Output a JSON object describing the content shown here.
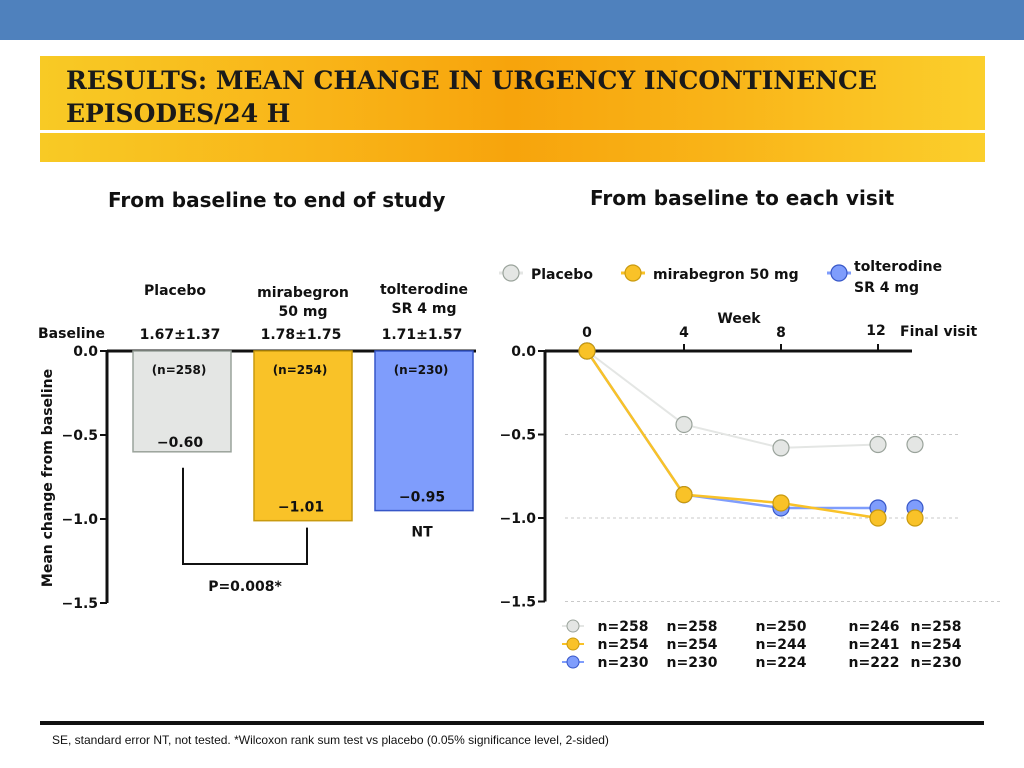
{
  "header": {
    "title": "RESULTS: MEAN CHANGE IN URGENCY INCONTINENCE EPISODES/24 H"
  },
  "colors": {
    "placebo_fill": "#e4e6e4",
    "placebo_stroke": "#9aa39b",
    "mirabegron_fill": "#f9c228",
    "mirabegron_stroke": "#c99a0e",
    "tolterodine_fill": "#7f9dfc",
    "tolterodine_stroke": "#3656c8",
    "accent": "#4f81bd",
    "title_band": "#f9b418"
  },
  "footer": {
    "note": "SE, standard error NT, not tested. *Wilcoxon rank sum test vs placebo (0.05% significance level, 2-sided)"
  },
  "chart_data": [
    {
      "type": "bar",
      "title": "From baseline to end of study",
      "ylabel": "Mean change from baseline",
      "ylim": [
        -1.5,
        0.0
      ],
      "yticks": [
        "0.0",
        "−0.5",
        "−1.0",
        "−1.5"
      ],
      "baseline_label": "Baseline",
      "categories": [
        {
          "key": "placebo",
          "name": "Placebo",
          "baseline": "1.67±1.37",
          "n": "(n=258)",
          "value": -0.6,
          "value_label": "−0.60"
        },
        {
          "key": "mirabegron",
          "name": "mirabegron 50 mg",
          "baseline": "1.78±1.75",
          "n": "(n=254)",
          "value": -1.01,
          "value_label": "−1.01"
        },
        {
          "key": "tolterodine",
          "name": "tolterodine SR 4 mg",
          "baseline": "1.71±1.57",
          "n": "(n=230)",
          "value": -0.95,
          "value_label": "−0.95",
          "annotation": "NT"
        }
      ],
      "comparison": {
        "label": "P=0.008*",
        "between": [
          "Placebo",
          "mirabegron 50 mg"
        ]
      }
    },
    {
      "type": "line",
      "title": "From baseline to each visit",
      "xlabel": "Week",
      "x_ticks": [
        "0",
        "4",
        "8",
        "12",
        "Final visit"
      ],
      "ylim": [
        -1.5,
        0.0
      ],
      "yticks": [
        "0.0",
        "−0.5",
        "−1.0",
        "−1.5"
      ],
      "series": [
        {
          "key": "placebo",
          "name": "Placebo",
          "x": [
            0,
            4,
            8,
            12
          ],
          "values": [
            0.0,
            -0.44,
            -0.58,
            -0.56
          ],
          "final": -0.56,
          "n": [
            "n=258",
            "n=258",
            "n=250",
            "n=246",
            "n=258"
          ]
        },
        {
          "key": "mirabegron",
          "name": "mirabegron 50 mg",
          "x": [
            0,
            4,
            8,
            12
          ],
          "values": [
            0.0,
            -0.86,
            -0.91,
            -1.0
          ],
          "final": -1.0,
          "n": [
            "n=254",
            "n=254",
            "n=244",
            "n=241",
            "n=254"
          ]
        },
        {
          "key": "tolterodine",
          "name": "tolterodine SR 4 mg",
          "x": [
            0,
            4,
            8,
            12
          ],
          "values": [
            0.0,
            -0.86,
            -0.94,
            -0.94
          ],
          "final": -0.94,
          "n": [
            "n=230",
            "n=230",
            "n=224",
            "n=222",
            "n=230"
          ]
        }
      ]
    }
  ]
}
